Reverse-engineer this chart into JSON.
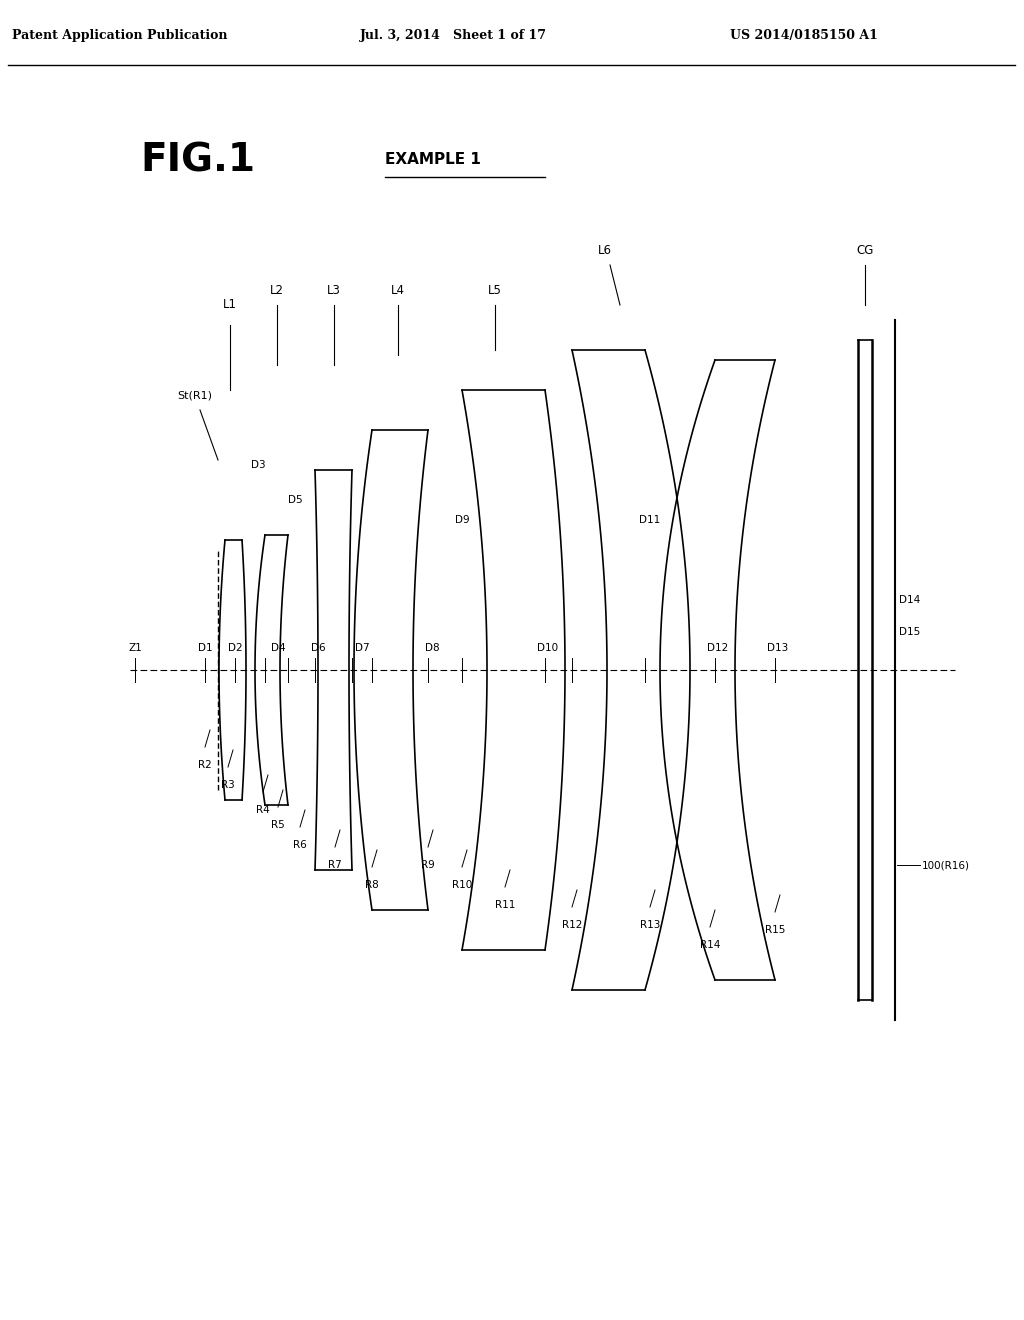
{
  "title": "FIG.1",
  "subtitle": "EXAMPLE 1",
  "header_left": "Patent Application Publication",
  "header_center": "Jul. 3, 2014   Sheet 1 of 17",
  "header_right": "US 2014/0185150 A1",
  "bg_color": "#ffffff",
  "text_color": "#000000",
  "line_color": "#000000"
}
